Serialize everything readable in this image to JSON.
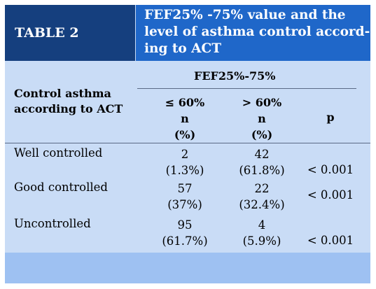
{
  "table": {
    "label": "TABLE 2",
    "title_lines": [
      "FEF25% -75% value and the",
      "level of asthma control accord-",
      "ing to ACT"
    ],
    "group_header": "FEF25%-75%",
    "row_header_lines": [
      "Control asthma",
      "according to ACT"
    ],
    "columns": [
      {
        "lines": [
          "≤ 60%",
          "n",
          "(%)"
        ]
      },
      {
        "lines": [
          "> 60%",
          "n",
          "(%)"
        ]
      },
      {
        "label": "p"
      }
    ],
    "rows": [
      {
        "label": "Well controlled",
        "c1_n": "2",
        "c1_pct": "(1.3%)",
        "c2_n": "42",
        "c2_pct": "(61.8%)",
        "p": "< 0.001"
      },
      {
        "label": "Good controlled",
        "c1_n": "57",
        "c1_pct": "(37%)",
        "c2_n": "22",
        "c2_pct": "(32.4%)",
        "p": "< 0.001"
      },
      {
        "label": "Uncontrolled",
        "c1_n": "95",
        "c1_pct": "(61.7%)",
        "c2_n": "4",
        "c2_pct": "(5.9%)",
        "p": "< 0.001"
      }
    ]
  }
}
